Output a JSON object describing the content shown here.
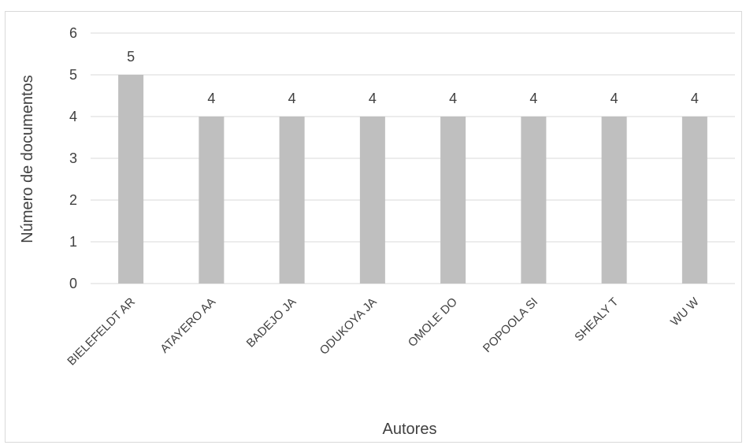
{
  "chart_data": {
    "type": "bar",
    "title": "",
    "xlabel": "Autores",
    "ylabel": "Número de documentos",
    "categories": [
      "BIELEFELDT AR",
      "ATAYERO AA",
      "BADEJO JA",
      "ODUKOYA JA",
      "OMOLE DO",
      "POPOOLA SI",
      "SHEALY T",
      "WU W"
    ],
    "values": [
      5,
      4,
      4,
      4,
      4,
      4,
      4,
      4
    ],
    "ylim": [
      0,
      6
    ],
    "yticks": [
      0,
      1,
      2,
      3,
      4,
      5,
      6
    ],
    "grid": true,
    "legend": "none",
    "data_labels": true,
    "colors": {
      "bar": "#bfbfbf",
      "grid": "#d9d9d9",
      "text": "#404040"
    }
  }
}
